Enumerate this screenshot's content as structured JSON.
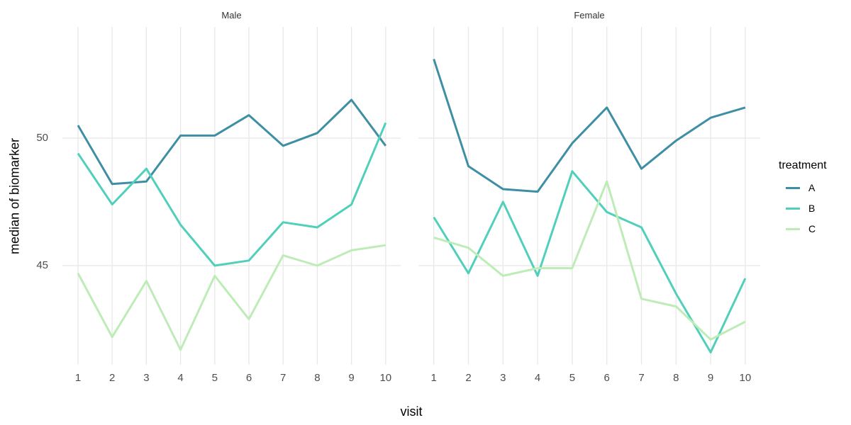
{
  "chart_data": {
    "type": "line",
    "title": "",
    "facet_labels": [
      "Male",
      "Female"
    ],
    "xlabel": "visit",
    "ylabel": "median of biomarker",
    "x": [
      1,
      2,
      3,
      4,
      5,
      6,
      7,
      8,
      9,
      10
    ],
    "x_tick_labels": [
      "1",
      "2",
      "3",
      "4",
      "5",
      "6",
      "7",
      "8",
      "9",
      "10"
    ],
    "y_ticks": [
      50,
      45
    ],
    "y_tick_labels": [
      "50",
      "45"
    ],
    "ylim_visible": [
      41.1,
      54.4
    ],
    "grid": "major gridlines only, light grey on white background",
    "grid_color": "#e8e8e8",
    "legend_title": "treatment",
    "legend_position": "right",
    "series": [
      {
        "name": "A",
        "color": "#3f8fa4",
        "values": {
          "male": [
            50.5,
            48.2,
            48.3,
            50.1,
            50.1,
            50.9,
            49.7,
            50.2,
            51.5,
            49.7
          ],
          "female": [
            53.1,
            48.9,
            48.0,
            47.9,
            49.8,
            51.2,
            48.8,
            49.9,
            50.8,
            51.2
          ]
        }
      },
      {
        "name": "B",
        "color": "#50d0bb",
        "values": {
          "male": [
            49.4,
            47.4,
            48.8,
            46.6,
            45.0,
            45.2,
            46.7,
            46.5,
            47.4,
            50.6
          ],
          "female": [
            46.9,
            44.7,
            47.5,
            44.6,
            48.7,
            47.1,
            46.5,
            43.9,
            41.6,
            44.5
          ]
        }
      },
      {
        "name": "C",
        "color": "#bdecb6",
        "values": {
          "male": [
            44.7,
            42.2,
            44.4,
            41.7,
            44.6,
            42.9,
            45.4,
            45.0,
            45.6,
            45.8
          ],
          "female": [
            46.1,
            45.7,
            44.6,
            44.9,
            44.9,
            48.3,
            43.7,
            43.4,
            42.1,
            42.8
          ]
        }
      }
    ]
  }
}
